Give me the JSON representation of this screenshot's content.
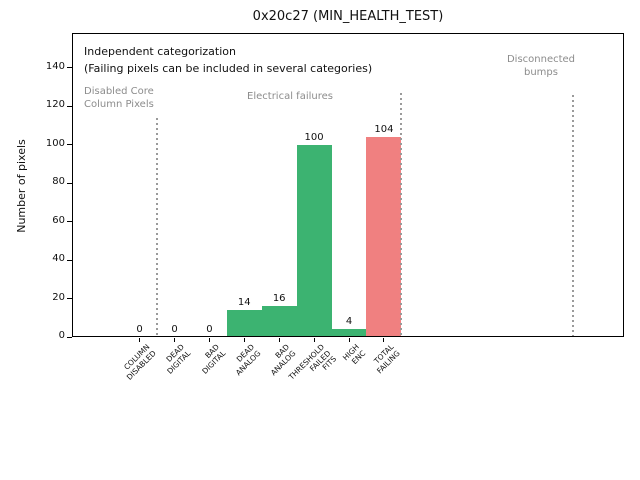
{
  "chart_data": {
    "type": "bar",
    "title": "0x20c27 (MIN_HEALTH_TEST)",
    "ylabel": "Number of pixels",
    "xlabel": "",
    "ylim": [
      0,
      158
    ],
    "yticks": [
      0,
      20,
      40,
      60,
      80,
      100,
      120,
      140
    ],
    "grid": false,
    "legend": null,
    "categories": [
      [
        "COLUMN",
        "DISABLED"
      ],
      [
        "DEAD",
        "DIGITAL"
      ],
      [
        "BAD",
        "DIGITAL"
      ],
      [
        "DEAD",
        "ANALOG"
      ],
      [
        "BAD",
        "ANALOG"
      ],
      [
        "THRESHOLD",
        "FAILED",
        "FITS"
      ],
      [
        "HIGH",
        "ENC"
      ],
      [
        "TOTAL",
        "FAILING"
      ]
    ],
    "values": [
      0,
      0,
      0,
      14,
      16,
      100,
      4,
      104
    ],
    "bar_colors": [
      "#3cb371",
      "#3cb371",
      "#3cb371",
      "#3cb371",
      "#3cb371",
      "#3cb371",
      "#3cb371",
      "#f08080"
    ],
    "colors": {
      "green_bar": "#3cb371",
      "red_bar": "#f08080",
      "gray_text": "#8c8c8c",
      "separator_line": "#9a9a9a",
      "axis": "#000000"
    },
    "annotations": [
      {
        "id": "independent-categorization-note",
        "text": "Independent categorization",
        "color": "#111111",
        "size": 11,
        "x": 84,
        "y": 45,
        "align": "left"
      },
      {
        "id": "failing-pixels-note",
        "text": "(Failing pixels can be included in several categories)",
        "color": "#111111",
        "size": 11,
        "x": 84,
        "y": 62,
        "align": "left"
      },
      {
        "id": "disabled-core-column-pixels-label",
        "text": "Disabled Core\nColumn Pixels",
        "color": "#8c8c8c",
        "size": 10,
        "x": 84,
        "y": 85,
        "align": "left"
      },
      {
        "id": "electrical-failures-label",
        "text": "Electrical failures",
        "color": "#8c8c8c",
        "size": 10,
        "x": 290,
        "y": 90,
        "align": "center"
      },
      {
        "id": "disconnected-bumps-label",
        "text": "Disconnected\nbumps",
        "color": "#8c8c8c",
        "size": 10,
        "x": 541,
        "y": 53,
        "align": "center"
      }
    ],
    "separators": [
      {
        "boundary": 0.5,
        "y_top": 118
      },
      {
        "boundary": 7.5,
        "y_top": 93
      },
      {
        "boundary": 12.42,
        "y_top": 95
      }
    ]
  }
}
